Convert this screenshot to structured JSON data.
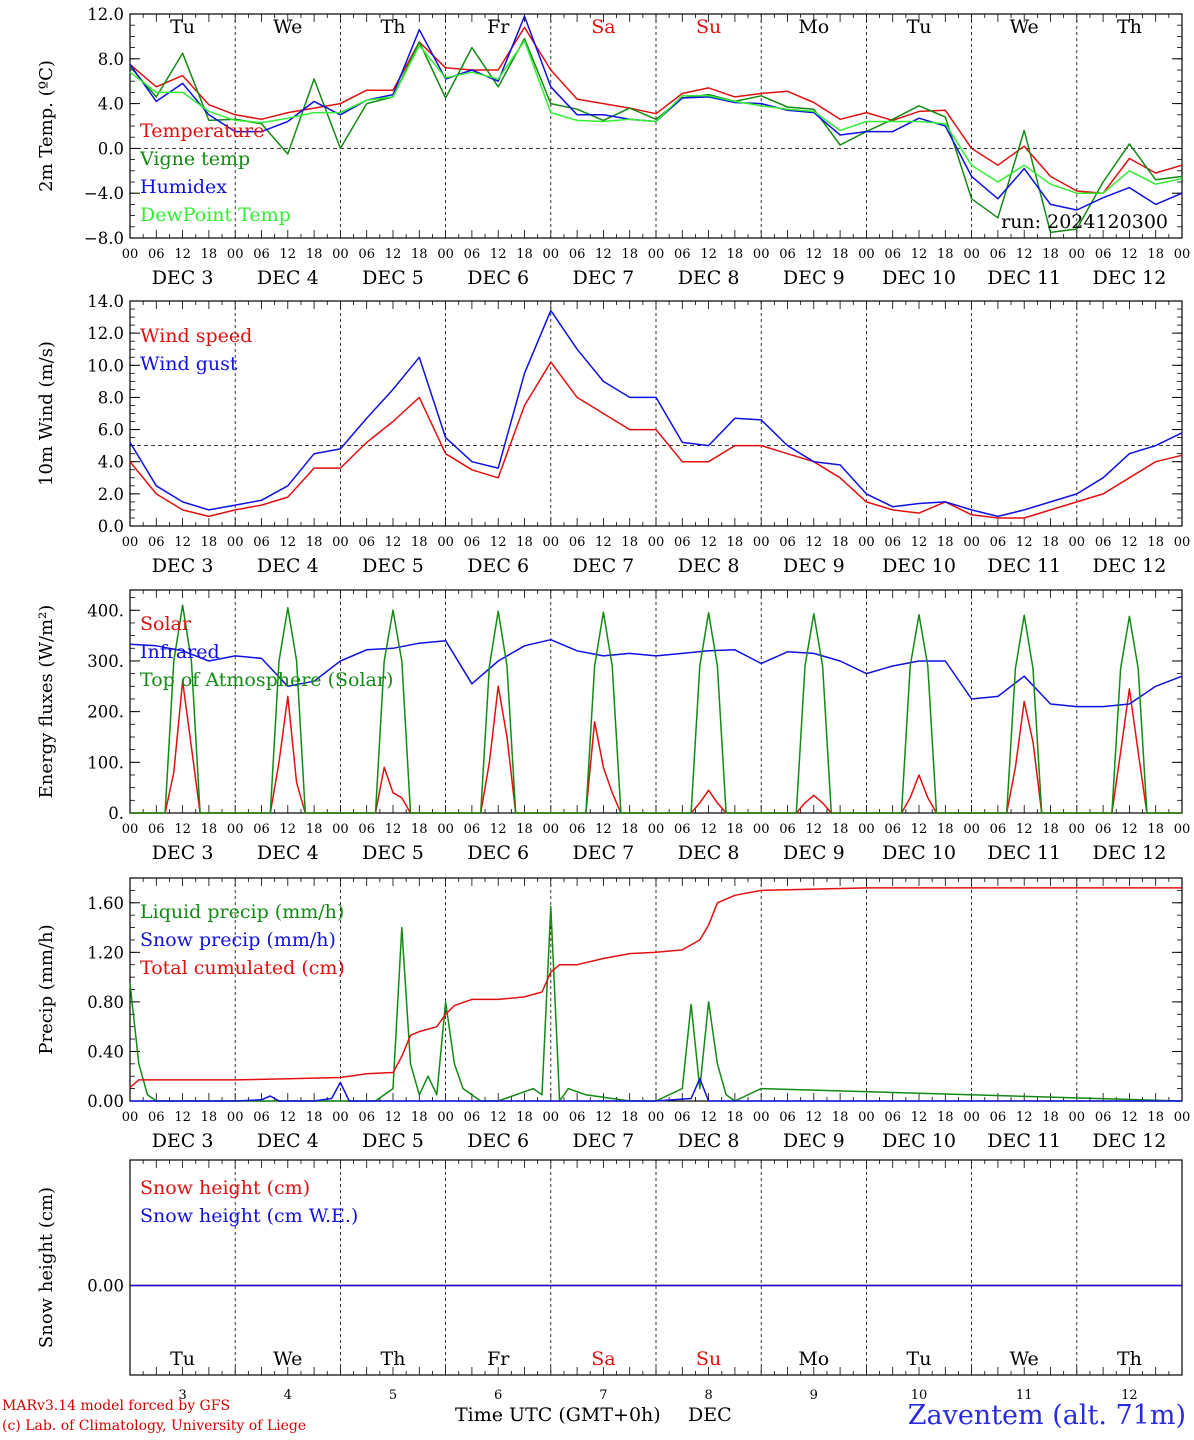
{
  "footer": {
    "model_line": "MARv3.14 model forced by GFS",
    "copyright_line": "(c) Lab. of Climatology, University of Liege",
    "time_axis_label": "Time UTC (GMT+0h)",
    "month_label": "DEC",
    "station": "Zaventem (alt. 71m)"
  },
  "run_label": "run: 2024120300",
  "days": [
    {
      "weekday": "Tu",
      "date": "DEC  3",
      "day": "3",
      "weekend": false
    },
    {
      "weekday": "We",
      "date": "DEC  4",
      "day": "4",
      "weekend": false
    },
    {
      "weekday": "Th",
      "date": "DEC  5",
      "day": "5",
      "weekend": false
    },
    {
      "weekday": "Fr",
      "date": "DEC  6",
      "day": "6",
      "weekend": false
    },
    {
      "weekday": "Sa",
      "date": "DEC  7",
      "day": "7",
      "weekend": true
    },
    {
      "weekday": "Su",
      "date": "DEC  8",
      "day": "8",
      "weekend": true
    },
    {
      "weekday": "Mo",
      "date": "DEC  9",
      "day": "9",
      "weekend": false
    },
    {
      "weekday": "Tu",
      "date": "DEC 10",
      "day": "10",
      "weekend": false
    },
    {
      "weekday": "We",
      "date": "DEC 11",
      "day": "11",
      "weekend": false
    },
    {
      "weekday": "Th",
      "date": "DEC 12",
      "day": "12",
      "weekend": false
    }
  ],
  "hour_labels": [
    "00",
    "06",
    "12",
    "18"
  ],
  "colors": {
    "red": "#e01010",
    "green": "#138a13",
    "blue": "#1010e0",
    "lightgreen": "#33ee33",
    "weekend": "#e01010"
  },
  "chart_data": [
    {
      "type": "line",
      "ylabel": "2m Temp. (ºC)",
      "ylim": [
        -8,
        12
      ],
      "yticks": [
        -8,
        -4,
        0,
        4,
        8,
        12
      ],
      "ytick_labels": [
        "−8.0",
        "−4.0",
        "0.0",
        "4.0",
        "8.0",
        "12.0"
      ],
      "ref_line": 0,
      "x_unit": "hours since DEC 3 00 UTC",
      "x": [
        0,
        6,
        12,
        18,
        24,
        30,
        36,
        42,
        48,
        54,
        60,
        66,
        72,
        78,
        84,
        90,
        96,
        102,
        108,
        114,
        120,
        126,
        132,
        138,
        144,
        150,
        156,
        162,
        168,
        174,
        180,
        186,
        192,
        198,
        204,
        210,
        216,
        222,
        228,
        234,
        240
      ],
      "series": [
        {
          "name": "Temperature",
          "color": "red",
          "values": [
            7.5,
            5.5,
            6.5,
            3.9,
            3.0,
            2.6,
            3.2,
            3.6,
            4.0,
            5.2,
            5.2,
            9.5,
            7.2,
            7.0,
            7.0,
            10.8,
            7.0,
            4.4,
            4.0,
            3.6,
            3.1,
            4.9,
            5.4,
            4.6,
            4.9,
            5.1,
            4.1,
            2.6,
            3.2,
            2.5,
            3.3,
            3.4,
            0.0,
            -1.5,
            0.2,
            -2.5,
            -3.8,
            -4.0,
            -0.9,
            -2.2,
            -1.5
          ]
        },
        {
          "name": "Vigne temp",
          "color": "green",
          "values": [
            7.3,
            4.6,
            8.5,
            2.5,
            2.6,
            2.2,
            -0.5,
            6.2,
            0.0,
            4.0,
            4.6,
            9.5,
            4.5,
            9.0,
            5.5,
            9.8,
            4.0,
            3.5,
            2.5,
            3.6,
            2.6,
            4.5,
            4.8,
            4.2,
            4.7,
            3.7,
            3.5,
            0.3,
            1.5,
            2.6,
            3.8,
            2.8,
            -4.5,
            -6.2,
            1.6,
            -7.5,
            -7.2,
            -3.0,
            0.4,
            -2.8,
            -2.5
          ]
        },
        {
          "name": "Humidex",
          "color": "blue",
          "values": [
            7.5,
            4.2,
            5.8,
            3.0,
            1.5,
            1.5,
            2.4,
            4.2,
            3.0,
            4.3,
            4.8,
            10.6,
            6.2,
            7.0,
            6.0,
            11.8,
            5.5,
            3.0,
            3.0,
            2.6,
            2.4,
            4.5,
            4.6,
            4.1,
            4.0,
            3.4,
            3.2,
            1.2,
            1.5,
            1.5,
            2.7,
            2.0,
            -2.5,
            -4.5,
            -1.8,
            -5.0,
            -5.5,
            -4.4,
            -3.5,
            -5.0,
            -4.0
          ]
        },
        {
          "name": "DewPoint Temp",
          "color": "lightgreen",
          "values": [
            6.8,
            5.0,
            5.0,
            3.3,
            2.5,
            2.3,
            2.7,
            3.2,
            3.2,
            4.3,
            4.6,
            9.2,
            6.3,
            6.8,
            6.2,
            9.6,
            3.2,
            2.5,
            2.4,
            2.6,
            2.4,
            4.7,
            4.7,
            4.2,
            3.8,
            3.5,
            3.3,
            1.6,
            2.4,
            2.4,
            2.4,
            2.2,
            -1.5,
            -3.0,
            -1.5,
            -3.2,
            -4.0,
            -4.0,
            -2.0,
            -3.2,
            -2.7
          ]
        }
      ]
    },
    {
      "type": "line",
      "ylabel": "10m Wind (m/s)",
      "ylim": [
        0,
        14
      ],
      "yticks": [
        0,
        2,
        4,
        6,
        8,
        10,
        12,
        14
      ],
      "ytick_labels": [
        "0.0",
        "2.0",
        "4.0",
        "6.0",
        "8.0",
        "10.0",
        "12.0",
        "14.0"
      ],
      "ref_line": 5,
      "x_unit": "hours since DEC 3 00 UTC",
      "x": [
        0,
        6,
        12,
        18,
        24,
        30,
        36,
        42,
        48,
        54,
        60,
        66,
        72,
        78,
        84,
        90,
        96,
        102,
        108,
        114,
        120,
        126,
        132,
        138,
        144,
        150,
        156,
        162,
        168,
        174,
        180,
        186,
        192,
        198,
        204,
        210,
        216,
        222,
        228,
        234,
        240
      ],
      "series": [
        {
          "name": "Wind speed",
          "color": "red",
          "values": [
            4.0,
            2.0,
            1.0,
            0.6,
            1.0,
            1.3,
            1.8,
            3.6,
            3.6,
            5.2,
            6.5,
            8.0,
            4.5,
            3.5,
            3.0,
            7.5,
            10.2,
            8.0,
            7.0,
            6.0,
            6.0,
            4.0,
            4.0,
            5.0,
            5.0,
            4.5,
            4.0,
            3.0,
            1.5,
            1.0,
            0.8,
            1.5,
            0.7,
            0.5,
            0.5,
            1.0,
            1.5,
            2.0,
            3.0,
            4.0,
            4.4
          ]
        },
        {
          "name": "Wind gust",
          "color": "blue",
          "values": [
            5.2,
            2.5,
            1.5,
            1.0,
            1.3,
            1.6,
            2.5,
            4.5,
            4.8,
            6.7,
            8.5,
            10.5,
            5.5,
            4.0,
            3.6,
            9.5,
            13.4,
            11.0,
            9.0,
            8.0,
            8.0,
            5.2,
            5.0,
            6.7,
            6.6,
            5.0,
            4.0,
            3.8,
            2.0,
            1.2,
            1.4,
            1.5,
            1.0,
            0.6,
            1.0,
            1.5,
            2.0,
            3.0,
            4.5,
            5.0,
            5.8
          ]
        }
      ]
    },
    {
      "type": "line",
      "ylabel": "Energy fluxes (W/m²)",
      "ylim": [
        0,
        440
      ],
      "yticks": [
        0,
        100,
        200,
        300,
        400
      ],
      "ytick_labels": [
        "0.",
        "100.",
        "200.",
        "300.",
        "400."
      ],
      "x_unit": "hours since DEC 3 00 UTC",
      "series": [
        {
          "name": "Solar",
          "color": "red",
          "x": [
            0,
            6,
            8,
            10,
            12,
            14,
            16,
            18,
            24,
            30,
            32,
            34,
            36,
            38,
            40,
            42,
            48,
            54,
            56,
            58,
            60,
            62,
            64,
            66,
            72,
            78,
            80,
            82,
            84,
            86,
            88,
            90,
            96,
            102,
            104,
            106,
            108,
            110,
            112,
            114,
            120,
            126,
            128,
            130,
            132,
            134,
            136,
            138,
            144,
            150,
            152,
            154,
            156,
            158,
            160,
            162,
            168,
            174,
            176,
            178,
            180,
            182,
            184,
            186,
            192,
            198,
            200,
            202,
            204,
            206,
            208,
            210,
            216,
            222,
            224,
            226,
            228,
            230,
            232,
            234,
            240
          ],
          "values": [
            0,
            0,
            0,
            80,
            260,
            130,
            0,
            0,
            0,
            0,
            0,
            100,
            230,
            60,
            0,
            0,
            0,
            0,
            0,
            90,
            40,
            30,
            0,
            0,
            0,
            0,
            0,
            100,
            250,
            150,
            0,
            0,
            0,
            0,
            0,
            180,
            90,
            40,
            0,
            0,
            0,
            0,
            0,
            20,
            45,
            20,
            0,
            0,
            0,
            0,
            0,
            20,
            35,
            20,
            0,
            0,
            0,
            0,
            0,
            30,
            75,
            30,
            0,
            0,
            0,
            0,
            0,
            90,
            220,
            140,
            0,
            0,
            0,
            0,
            0,
            120,
            245,
            120,
            0,
            0,
            0
          ]
        },
        {
          "name": "Infrared",
          "color": "blue",
          "x": [
            0,
            6,
            12,
            18,
            24,
            30,
            36,
            42,
            48,
            54,
            60,
            66,
            72,
            78,
            84,
            90,
            96,
            102,
            108,
            114,
            120,
            126,
            132,
            138,
            144,
            150,
            156,
            162,
            168,
            174,
            180,
            186,
            192,
            198,
            204,
            210,
            216,
            222,
            228,
            234,
            240
          ],
          "values": [
            333,
            330,
            320,
            300,
            310,
            305,
            250,
            260,
            300,
            322,
            325,
            335,
            340,
            255,
            300,
            330,
            342,
            320,
            310,
            315,
            310,
            315,
            320,
            322,
            295,
            318,
            315,
            300,
            275,
            290,
            300,
            300,
            225,
            230,
            270,
            215,
            210,
            210,
            215,
            250,
            270
          ]
        },
        {
          "name": "Top of Atmosphere (Solar)",
          "color": "green",
          "x": [
            0,
            6,
            8,
            10,
            12,
            14,
            16,
            18,
            24,
            30,
            32,
            34,
            36,
            38,
            40,
            42,
            48,
            54,
            56,
            58,
            60,
            62,
            64,
            66,
            72,
            78,
            80,
            82,
            84,
            86,
            88,
            90,
            96,
            102,
            104,
            106,
            108,
            110,
            112,
            114,
            120,
            126,
            128,
            130,
            132,
            134,
            136,
            138,
            144,
            150,
            152,
            154,
            156,
            158,
            160,
            162,
            168,
            174,
            176,
            178,
            180,
            182,
            184,
            186,
            192,
            198,
            200,
            202,
            204,
            206,
            208,
            210,
            216,
            222,
            224,
            226,
            228,
            230,
            232,
            234,
            240
          ],
          "values": [
            0,
            0,
            0,
            300,
            410,
            300,
            0,
            0,
            0,
            0,
            0,
            300,
            405,
            300,
            0,
            0,
            0,
            0,
            0,
            300,
            400,
            300,
            0,
            0,
            0,
            0,
            0,
            290,
            398,
            290,
            0,
            0,
            0,
            0,
            0,
            290,
            396,
            290,
            0,
            0,
            0,
            0,
            0,
            290,
            395,
            290,
            0,
            0,
            0,
            0,
            0,
            290,
            393,
            290,
            0,
            0,
            0,
            0,
            0,
            290,
            391,
            290,
            0,
            0,
            0,
            0,
            0,
            285,
            390,
            285,
            0,
            0,
            0,
            0,
            0,
            285,
            388,
            285,
            0,
            0,
            0
          ]
        }
      ]
    },
    {
      "type": "line",
      "ylabel": "Precip (mm/h)",
      "ylim": [
        0,
        1.8
      ],
      "yticks": [
        0,
        0.4,
        0.8,
        1.2,
        1.6
      ],
      "ytick_labels": [
        "0.00",
        "0.40",
        "0.80",
        "1.20",
        "1.60"
      ],
      "x_unit": "hours since DEC 3 00 UTC",
      "series": [
        {
          "name": "Liquid precip (mm/h)",
          "color": "green",
          "x": [
            0,
            2,
            4,
            6,
            24,
            48,
            56,
            60,
            62,
            64,
            66,
            68,
            70,
            72,
            74,
            76,
            80,
            84,
            92,
            94,
            96,
            98,
            100,
            104,
            108,
            114,
            120,
            126,
            128,
            130,
            132,
            134,
            136,
            138,
            144,
            240
          ],
          "values": [
            0.95,
            0.3,
            0.05,
            0.0,
            0.0,
            0.0,
            0.0,
            0.1,
            1.4,
            0.3,
            0.05,
            0.2,
            0.05,
            0.8,
            0.3,
            0.1,
            0.0,
            0.0,
            0.1,
            0.05,
            1.57,
            0.0,
            0.1,
            0.05,
            0.03,
            0.0,
            0.0,
            0.1,
            0.78,
            0.1,
            0.8,
            0.3,
            0.05,
            0.0,
            0.1,
            0.0
          ]
        },
        {
          "name": "Snow precip (mm/h)",
          "color": "blue",
          "x": [
            0,
            24,
            30,
            32,
            34,
            42,
            46,
            48,
            50,
            60,
            120,
            128,
            130,
            132,
            240
          ],
          "values": [
            0.0,
            0.0,
            0.01,
            0.04,
            0.0,
            0.0,
            0.02,
            0.15,
            0.0,
            0.0,
            0.0,
            0.02,
            0.18,
            0.0,
            0.0
          ]
        },
        {
          "name": "Total cumulated (cm)",
          "color": "red",
          "x": [
            0,
            2,
            24,
            36,
            48,
            54,
            60,
            62,
            64,
            66,
            70,
            72,
            74,
            78,
            84,
            90,
            94,
            96,
            98,
            102,
            108,
            114,
            120,
            126,
            130,
            132,
            134,
            138,
            144,
            168,
            240
          ],
          "values": [
            0.11,
            0.17,
            0.17,
            0.18,
            0.19,
            0.22,
            0.23,
            0.36,
            0.53,
            0.56,
            0.6,
            0.7,
            0.77,
            0.82,
            0.82,
            0.84,
            0.88,
            1.04,
            1.1,
            1.1,
            1.15,
            1.19,
            1.2,
            1.22,
            1.3,
            1.42,
            1.6,
            1.66,
            1.7,
            1.72,
            1.72
          ]
        }
      ]
    },
    {
      "type": "line",
      "ylabel": "Snow height (cm)",
      "ytick_labels": [
        "0.00"
      ],
      "x_unit": "hours since DEC 3 00 UTC",
      "x": [
        0,
        240
      ],
      "series": [
        {
          "name": "Snow height (cm)",
          "color": "red",
          "values": [
            0,
            0
          ]
        },
        {
          "name": "Snow height (cm W.E.)",
          "color": "blue",
          "values": [
            0,
            0
          ]
        }
      ]
    }
  ]
}
